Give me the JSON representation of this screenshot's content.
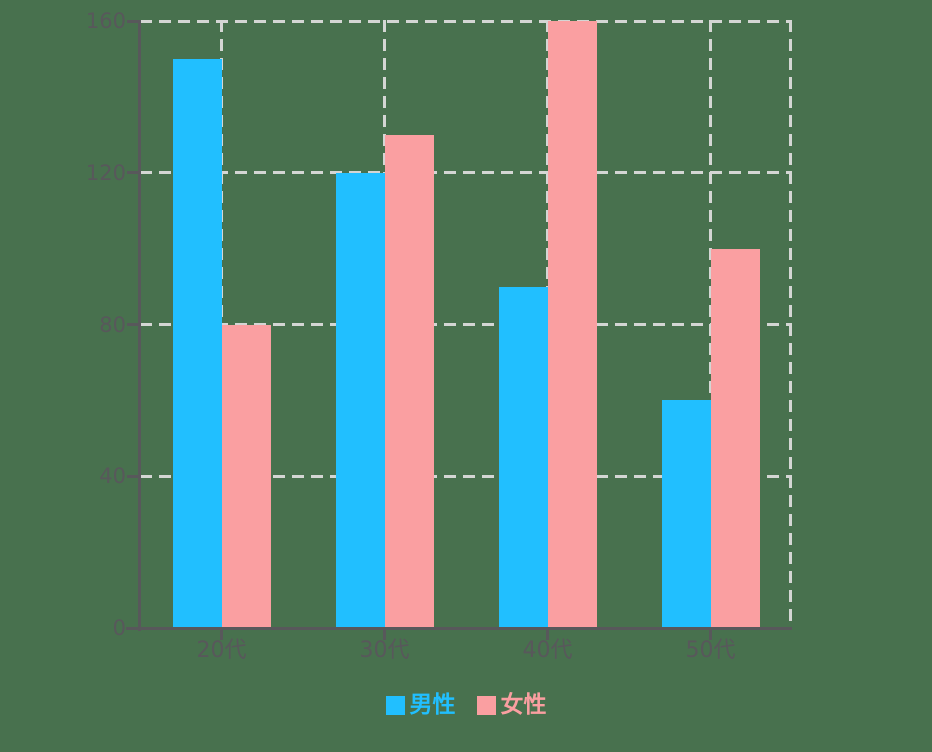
{
  "chart_data": {
    "type": "bar",
    "categories": [
      "20代",
      "30代",
      "40代",
      "50代"
    ],
    "series": [
      {
        "name": "男性",
        "color": "#21BFFF",
        "values": [
          150,
          120,
          90,
          60
        ]
      },
      {
        "name": "女性",
        "color": "#FA9FA1",
        "values": [
          80,
          130,
          160,
          100
        ]
      }
    ],
    "title": "",
    "xlabel": "",
    "ylabel": "",
    "ylim": [
      0,
      160
    ],
    "yticks": [
      0,
      40,
      80,
      120,
      160
    ],
    "grid": true,
    "grid_style": "dashed",
    "legend_position": "bottom",
    "colors": {
      "background": "#48714E",
      "axis": "#58585B",
      "grid": "#D4D6D4",
      "tick_text": "#58585B"
    }
  }
}
